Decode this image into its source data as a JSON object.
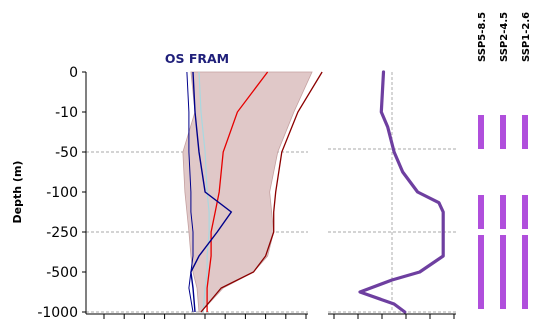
{
  "chart_data": [
    {
      "type": "line",
      "title": "OS FRAM",
      "ylabel": "Depth (m)",
      "depth_ticks": [
        0,
        -10,
        -50,
        -100,
        -250,
        -500,
        -1000
      ],
      "depth_tick_labels": [
        "0",
        "-10",
        "-50",
        "-100",
        "-250",
        "-500",
        "-1000"
      ],
      "reference_depths": [
        -50,
        -250,
        -1000
      ],
      "x_tick_count": 11,
      "xlim": [
        0,
        11
      ],
      "vertical_reference_x": 5.75,
      "envelope": {
        "depth": [
          0,
          -10,
          -50,
          -100,
          -175,
          -250,
          -400,
          -500,
          -700,
          -1000
        ],
        "left": [
          5.2,
          5.4,
          4.8,
          4.9,
          5.0,
          5.1,
          5.2,
          5.3,
          5.5,
          5.6
        ],
        "right": [
          11.2,
          10.3,
          9.5,
          9.1,
          9.2,
          9.3,
          9.0,
          8.3,
          6.8,
          5.7
        ]
      },
      "series": [
        {
          "depth": [
            0,
            -10,
            -50,
            -100,
            -175,
            -250,
            -400,
            -500,
            -700,
            -1000
          ],
          "values": [
            5.6,
            5.7,
            5.9,
            6.0,
            6.1,
            6.1,
            6.0,
            6.0,
            5.9,
            5.8
          ]
        },
        {
          "depth": [
            0,
            -10,
            -50,
            -100,
            -175,
            -250,
            -400,
            -500,
            -700,
            -1000
          ],
          "values": [
            9.0,
            7.5,
            6.8,
            6.6,
            6.4,
            6.2,
            6.2,
            6.1,
            6.0,
            6.0
          ]
        },
        {
          "depth": [
            0,
            -10,
            -50,
            -100,
            -175,
            -250,
            -400,
            -500,
            -700,
            -1000
          ],
          "values": [
            11.7,
            10.5,
            9.7,
            9.4,
            9.3,
            9.3,
            8.9,
            8.3,
            6.7,
            5.7
          ]
        },
        {
          "depth": [
            0,
            -10,
            -50,
            -100,
            -175,
            -250,
            -400,
            -500,
            -700,
            -1000
          ],
          "values": [
            5.3,
            5.4,
            5.6,
            5.9,
            7.2,
            6.5,
            5.6,
            5.2,
            5.3,
            5.4
          ]
        },
        {
          "depth": [
            0,
            -10,
            -50,
            -100,
            -175,
            -250,
            -400,
            -500,
            -700,
            -1000
          ],
          "values": [
            5.0,
            5.1,
            5.1,
            5.2,
            5.2,
            5.3,
            5.3,
            5.2,
            5.1,
            5.3
          ]
        }
      ]
    },
    {
      "type": "line",
      "depth_ticks": [
        0,
        -10,
        -50,
        -100,
        -250,
        -500,
        -1000
      ],
      "reference_depths": [
        -50,
        -250,
        -1000
      ],
      "x_tick_count": 6,
      "xlim": [
        0,
        6
      ],
      "vertical_reference_x": 3.0,
      "series": [
        {
          "depth": [
            0,
            -10,
            -25,
            -50,
            -75,
            -100,
            -140,
            -175,
            -250,
            -400,
            -500,
            -600,
            -750,
            -900,
            -1000
          ],
          "values": [
            2.6,
            2.5,
            2.8,
            3.1,
            3.5,
            4.2,
            5.2,
            5.4,
            5.4,
            5.4,
            4.3,
            3.0,
            1.5,
            3.1,
            3.6
          ]
        }
      ]
    },
    {
      "type": "bar",
      "categories": [
        "SSP5-8.5",
        "SSP2-4.5",
        "SSP1-2.6"
      ],
      "depth_bands": [
        [
          -10,
          -50
        ],
        [
          -100,
          -250
        ],
        [
          -250,
          -1000
        ]
      ]
    }
  ],
  "colors": {
    "title": "#1f1f7a",
    "envelope_fill": "#e0c8c8",
    "envelope_edge": "#c4a0a0",
    "red_line": "#e60000",
    "darkred_line": "#8b0000",
    "navy_line": "#00008b",
    "cyan_line": "#a8d8e0",
    "purple_line": "#6e3fa0",
    "bar": "#b04fdc",
    "grid": "#8c8c8c",
    "axis": "#000000"
  }
}
